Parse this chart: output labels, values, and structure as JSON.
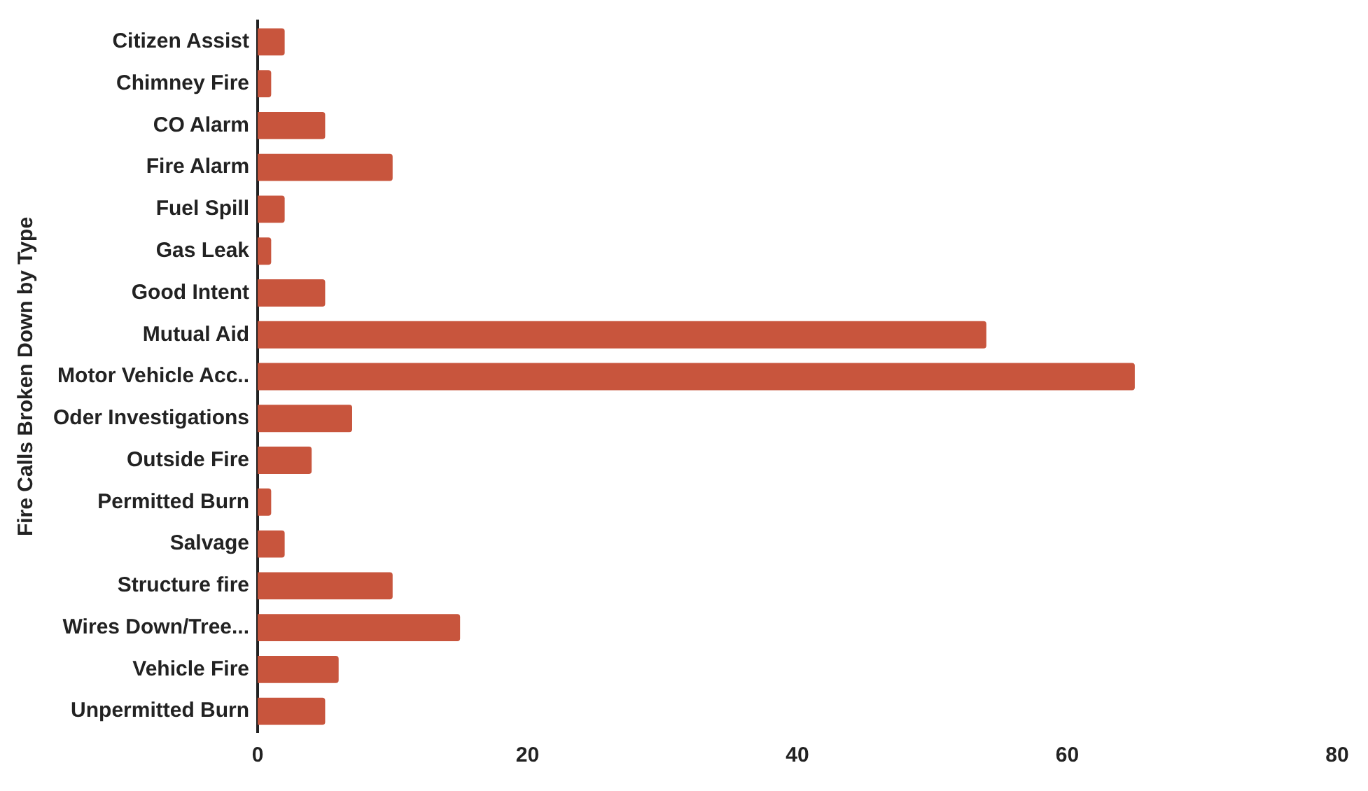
{
  "chart_data": {
    "type": "bar",
    "orientation": "horizontal",
    "ylabel": "Fire Calls Broken Down by Type",
    "categories": [
      "Citizen Assist",
      "Chimney Fire",
      "CO Alarm",
      "Fire Alarm",
      "Fuel Spill",
      "Gas Leak",
      "Good Intent",
      "Mutual Aid",
      "Motor Vehicle Acc..",
      "Oder Investigations",
      "Outside Fire",
      "Permitted Burn",
      "Salvage",
      "Structure fire",
      "Wires Down/Tree...",
      "Vehicle Fire",
      "Unpermitted Burn"
    ],
    "values": [
      2,
      1,
      5,
      10,
      2,
      1,
      5,
      54,
      65,
      7,
      4,
      1,
      2,
      10,
      15,
      6,
      5
    ],
    "color": "#c8553d",
    "xlim": [
      0,
      80
    ],
    "xticks": [
      0,
      20,
      40,
      60,
      80
    ],
    "grid": false,
    "legend": false
  }
}
